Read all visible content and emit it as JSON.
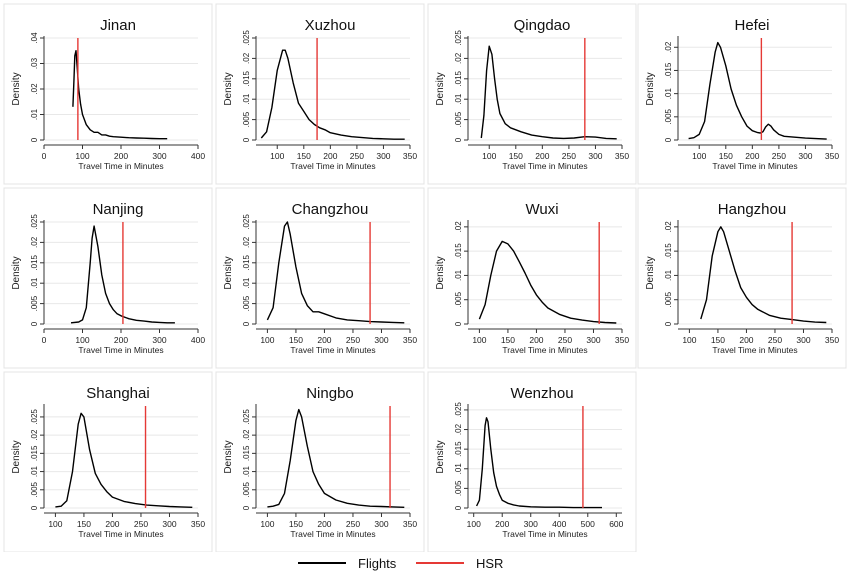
{
  "chart_data": [
    {
      "type": "line",
      "title": "Jinan",
      "xlabel": "Travel Time in Minutes",
      "ylabel": "Density",
      "xlim": [
        0,
        400
      ],
      "ylim": [
        0,
        0.04
      ],
      "xticks": [
        0,
        100,
        200,
        300,
        400
      ],
      "yticks": [
        0,
        0.01,
        0.02,
        0.03,
        0.04
      ],
      "ytick_labels": [
        "0",
        ".01",
        ".02",
        ".03",
        ".04"
      ],
      "series": [
        {
          "name": "Flights",
          "x": [
            75,
            78,
            80,
            83,
            86,
            90,
            95,
            100,
            110,
            120,
            130,
            140,
            150,
            160,
            170,
            180,
            200,
            220,
            240,
            260,
            280,
            300,
            320
          ],
          "y": [
            0.013,
            0.024,
            0.033,
            0.035,
            0.029,
            0.02,
            0.014,
            0.01,
            0.006,
            0.004,
            0.003,
            0.003,
            0.002,
            0.002,
            0.0015,
            0.0013,
            0.0011,
            0.0009,
            0.0008,
            0.0007,
            0.0006,
            0.0005,
            0.0005
          ]
        },
        {
          "name": "HSR",
          "x": [
            88,
            88
          ],
          "y": [
            0,
            0.04
          ]
        }
      ]
    },
    {
      "type": "line",
      "title": "Xuzhou",
      "xlabel": "Travel Time in Minutes",
      "ylabel": "Density",
      "xlim": [
        60,
        350
      ],
      "ylim": [
        0,
        0.025
      ],
      "xticks": [
        100,
        150,
        200,
        250,
        300,
        350
      ],
      "yticks": [
        0,
        0.005,
        0.01,
        0.015,
        0.02,
        0.025
      ],
      "ytick_labels": [
        "0",
        ".005",
        ".01",
        ".015",
        ".02",
        ".025"
      ],
      "series": [
        {
          "name": "Flights",
          "x": [
            70,
            80,
            90,
            100,
            110,
            115,
            120,
            130,
            140,
            150,
            160,
            170,
            180,
            190,
            200,
            220,
            240,
            260,
            280,
            300,
            320,
            340
          ],
          "y": [
            0.0005,
            0.002,
            0.008,
            0.017,
            0.022,
            0.022,
            0.02,
            0.014,
            0.009,
            0.007,
            0.005,
            0.0038,
            0.003,
            0.0025,
            0.0018,
            0.0012,
            0.0008,
            0.0006,
            0.0004,
            0.0003,
            0.0002,
            0.0002
          ]
        },
        {
          "name": "HSR",
          "x": [
            175,
            175
          ],
          "y": [
            0,
            0.025
          ]
        }
      ]
    },
    {
      "type": "line",
      "title": "Qingdao",
      "xlabel": "Travel Time in Minutes",
      "ylabel": "Density",
      "xlim": [
        60,
        350
      ],
      "ylim": [
        0,
        0.025
      ],
      "xticks": [
        100,
        150,
        200,
        250,
        300,
        350
      ],
      "yticks": [
        0,
        0.005,
        0.01,
        0.015,
        0.02,
        0.025
      ],
      "ytick_labels": [
        "0",
        ".005",
        ".01",
        ".015",
        ".02",
        ".025"
      ],
      "series": [
        {
          "name": "Flights",
          "x": [
            85,
            90,
            95,
            100,
            105,
            110,
            115,
            120,
            130,
            140,
            150,
            160,
            180,
            200,
            220,
            240,
            260,
            280,
            300,
            320,
            340
          ],
          "y": [
            0.0005,
            0.006,
            0.017,
            0.023,
            0.021,
            0.015,
            0.01,
            0.0065,
            0.004,
            0.003,
            0.0025,
            0.002,
            0.0012,
            0.0008,
            0.0005,
            0.0004,
            0.0005,
            0.0008,
            0.0007,
            0.0004,
            0.0003
          ]
        },
        {
          "name": "HSR",
          "x": [
            280,
            280
          ],
          "y": [
            0,
            0.025
          ]
        }
      ]
    },
    {
      "type": "line",
      "title": "Hefei",
      "xlabel": "Travel Time in Minutes",
      "ylabel": "Density",
      "xlim": [
        60,
        350
      ],
      "ylim": [
        0,
        0.022
      ],
      "xticks": [
        100,
        150,
        200,
        250,
        300,
        350
      ],
      "yticks": [
        0,
        0.005,
        0.01,
        0.015,
        0.02
      ],
      "ytick_labels": [
        "0",
        ".005",
        ".01",
        ".015",
        ".02"
      ],
      "series": [
        {
          "name": "Flights",
          "x": [
            80,
            90,
            100,
            110,
            120,
            130,
            135,
            140,
            150,
            160,
            170,
            180,
            190,
            200,
            210,
            215,
            220,
            225,
            230,
            235,
            240,
            250,
            260,
            280,
            300,
            320,
            340
          ],
          "y": [
            0.0003,
            0.0005,
            0.0012,
            0.004,
            0.012,
            0.019,
            0.021,
            0.02,
            0.016,
            0.011,
            0.0075,
            0.005,
            0.003,
            0.002,
            0.0016,
            0.0015,
            0.0018,
            0.0028,
            0.0034,
            0.003,
            0.0022,
            0.0012,
            0.0008,
            0.0006,
            0.0004,
            0.0003,
            0.0002
          ]
        },
        {
          "name": "HSR",
          "x": [
            217,
            217
          ],
          "y": [
            0,
            0.022
          ]
        }
      ]
    },
    {
      "type": "line",
      "title": "Nanjing",
      "xlabel": "Travel Time in Minutes",
      "ylabel": "Density",
      "xlim": [
        0,
        400
      ],
      "ylim": [
        0,
        0.025
      ],
      "xticks": [
        0,
        100,
        200,
        300,
        400
      ],
      "yticks": [
        0,
        0.005,
        0.01,
        0.015,
        0.02,
        0.025
      ],
      "ytick_labels": [
        "0",
        ".005",
        ".01",
        ".015",
        ".02",
        ".025"
      ],
      "series": [
        {
          "name": "Flights",
          "x": [
            70,
            90,
            100,
            110,
            120,
            125,
            130,
            140,
            150,
            160,
            170,
            180,
            190,
            200,
            220,
            240,
            260,
            280,
            300,
            320,
            340
          ],
          "y": [
            0.0003,
            0.0005,
            0.001,
            0.004,
            0.015,
            0.021,
            0.024,
            0.019,
            0.012,
            0.0075,
            0.005,
            0.0035,
            0.0025,
            0.002,
            0.0013,
            0.0009,
            0.0007,
            0.0005,
            0.0004,
            0.0003,
            0.0003
          ]
        },
        {
          "name": "HSR",
          "x": [
            205,
            205
          ],
          "y": [
            0,
            0.025
          ]
        }
      ]
    },
    {
      "type": "line",
      "title": "Changzhou",
      "xlabel": "Travel Time in Minutes",
      "ylabel": "Density",
      "xlim": [
        80,
        350
      ],
      "ylim": [
        0,
        0.025
      ],
      "xticks": [
        100,
        150,
        200,
        250,
        300,
        350
      ],
      "yticks": [
        0,
        0.005,
        0.01,
        0.015,
        0.02,
        0.025
      ],
      "ytick_labels": [
        "0",
        ".005",
        ".01",
        ".015",
        ".02",
        ".025"
      ],
      "series": [
        {
          "name": "Flights",
          "x": [
            100,
            110,
            120,
            130,
            135,
            140,
            150,
            160,
            170,
            180,
            190,
            200,
            220,
            240,
            260,
            280,
            300,
            320,
            340
          ],
          "y": [
            0.001,
            0.004,
            0.015,
            0.024,
            0.025,
            0.022,
            0.014,
            0.0075,
            0.0045,
            0.003,
            0.003,
            0.0025,
            0.0015,
            0.001,
            0.0008,
            0.0006,
            0.0005,
            0.0004,
            0.0003
          ]
        },
        {
          "name": "HSR",
          "x": [
            280,
            280
          ],
          "y": [
            0,
            0.025
          ]
        }
      ]
    },
    {
      "type": "line",
      "title": "Wuxi",
      "xlabel": "Travel Time in Minutes",
      "ylabel": "Density",
      "xlim": [
        80,
        350
      ],
      "ylim": [
        0,
        0.021
      ],
      "xticks": [
        100,
        150,
        200,
        250,
        300,
        350
      ],
      "yticks": [
        0,
        0.005,
        0.01,
        0.015,
        0.02
      ],
      "ytick_labels": [
        "0",
        ".005",
        ".01",
        ".015",
        ".02"
      ],
      "series": [
        {
          "name": "Flights",
          "x": [
            100,
            110,
            120,
            130,
            140,
            150,
            160,
            170,
            180,
            190,
            200,
            210,
            220,
            240,
            260,
            280,
            300,
            320,
            340
          ],
          "y": [
            0.001,
            0.004,
            0.01,
            0.015,
            0.017,
            0.0165,
            0.015,
            0.0128,
            0.0105,
            0.008,
            0.006,
            0.0045,
            0.0033,
            0.002,
            0.0012,
            0.0008,
            0.0005,
            0.0003,
            0.0002
          ]
        },
        {
          "name": "HSR",
          "x": [
            310,
            310
          ],
          "y": [
            0,
            0.021
          ]
        }
      ]
    },
    {
      "type": "line",
      "title": "Hangzhou",
      "xlabel": "Travel Time in Minutes",
      "ylabel": "Density",
      "xlim": [
        80,
        350
      ],
      "ylim": [
        0,
        0.021
      ],
      "xticks": [
        100,
        150,
        200,
        250,
        300,
        350
      ],
      "yticks": [
        0,
        0.005,
        0.01,
        0.015,
        0.02
      ],
      "ytick_labels": [
        "0",
        ".005",
        ".01",
        ".015",
        ".02"
      ],
      "series": [
        {
          "name": "Flights",
          "x": [
            120,
            130,
            140,
            150,
            155,
            160,
            170,
            180,
            190,
            200,
            210,
            220,
            240,
            260,
            280,
            300,
            320,
            340
          ],
          "y": [
            0.001,
            0.005,
            0.014,
            0.019,
            0.02,
            0.019,
            0.015,
            0.011,
            0.0075,
            0.0055,
            0.004,
            0.003,
            0.0018,
            0.0012,
            0.0009,
            0.0006,
            0.0004,
            0.0003
          ]
        },
        {
          "name": "HSR",
          "x": [
            280,
            280
          ],
          "y": [
            0,
            0.021
          ]
        }
      ]
    },
    {
      "type": "line",
      "title": "Shanghai",
      "xlabel": "Travel Time in Minutes",
      "ylabel": "Density",
      "xlim": [
        80,
        350
      ],
      "ylim": [
        0,
        0.028
      ],
      "xticks": [
        100,
        150,
        200,
        250,
        300,
        350
      ],
      "yticks": [
        0,
        0.005,
        0.01,
        0.015,
        0.02,
        0.025
      ],
      "ytick_labels": [
        "0",
        ".005",
        ".01",
        ".015",
        ".02",
        ".025"
      ],
      "series": [
        {
          "name": "Flights",
          "x": [
            100,
            110,
            120,
            130,
            140,
            145,
            150,
            160,
            170,
            180,
            190,
            200,
            220,
            240,
            260,
            280,
            300,
            320,
            340
          ],
          "y": [
            0.0003,
            0.0005,
            0.002,
            0.01,
            0.023,
            0.026,
            0.025,
            0.016,
            0.0095,
            0.0065,
            0.0045,
            0.003,
            0.0018,
            0.0012,
            0.0008,
            0.0006,
            0.0004,
            0.0003,
            0.0002
          ]
        },
        {
          "name": "HSR",
          "x": [
            258,
            258
          ],
          "y": [
            0,
            0.028
          ]
        }
      ]
    },
    {
      "type": "line",
      "title": "Ningbo",
      "xlabel": "Travel Time in Minutes",
      "ylabel": "Density",
      "xlim": [
        80,
        350
      ],
      "ylim": [
        0,
        0.028
      ],
      "xticks": [
        100,
        150,
        200,
        250,
        300,
        350
      ],
      "yticks": [
        0,
        0.005,
        0.01,
        0.015,
        0.02,
        0.025
      ],
      "ytick_labels": [
        "0",
        ".005",
        ".01",
        ".015",
        ".02",
        ".025"
      ],
      "series": [
        {
          "name": "Flights",
          "x": [
            100,
            110,
            120,
            130,
            140,
            150,
            155,
            160,
            170,
            180,
            190,
            200,
            220,
            240,
            260,
            280,
            300,
            320,
            340
          ],
          "y": [
            0.0003,
            0.0005,
            0.001,
            0.004,
            0.013,
            0.024,
            0.027,
            0.025,
            0.017,
            0.01,
            0.0065,
            0.004,
            0.0022,
            0.0013,
            0.0008,
            0.0005,
            0.0004,
            0.0003,
            0.0002
          ]
        },
        {
          "name": "HSR",
          "x": [
            315,
            315
          ],
          "y": [
            0,
            0.028
          ]
        }
      ]
    },
    {
      "type": "line",
      "title": "Wenzhou",
      "xlabel": "Travel Time in Minutes",
      "ylabel": "Density",
      "xlim": [
        80,
        620
      ],
      "ylim": [
        0,
        0.026
      ],
      "xticks": [
        100,
        200,
        300,
        400,
        500,
        600
      ],
      "yticks": [
        0,
        0.005,
        0.01,
        0.015,
        0.02,
        0.025
      ],
      "ytick_labels": [
        "0",
        ".005",
        ".01",
        ".015",
        ".02",
        ".025"
      ],
      "series": [
        {
          "name": "Flights",
          "x": [
            110,
            120,
            130,
            140,
            145,
            150,
            160,
            170,
            180,
            190,
            200,
            220,
            240,
            260,
            300,
            350,
            400,
            450,
            500,
            550
          ],
          "y": [
            0.0005,
            0.002,
            0.01,
            0.021,
            0.023,
            0.022,
            0.015,
            0.009,
            0.0055,
            0.0035,
            0.002,
            0.0012,
            0.0008,
            0.0005,
            0.0003,
            0.0002,
            0.0002,
            0.0001,
            0.0001,
            0.0001
          ]
        },
        {
          "name": "HSR",
          "x": [
            483,
            483
          ],
          "y": [
            0,
            0.026
          ]
        }
      ]
    }
  ],
  "legend": {
    "items": [
      {
        "label": "Flights",
        "color": "#000000"
      },
      {
        "label": "HSR",
        "color": "#e53935"
      }
    ]
  }
}
